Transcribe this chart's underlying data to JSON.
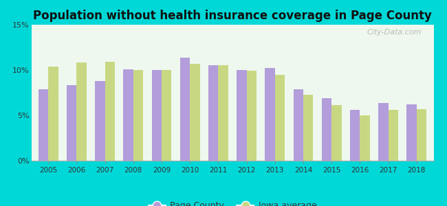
{
  "title": "Population without health insurance coverage in Page County",
  "years": [
    2005,
    2006,
    2007,
    2008,
    2009,
    2010,
    2011,
    2012,
    2013,
    2014,
    2015,
    2016,
    2017,
    2018
  ],
  "page_county": [
    7.9,
    8.3,
    8.8,
    10.1,
    10.0,
    11.4,
    10.5,
    10.0,
    10.2,
    7.9,
    6.9,
    5.6,
    6.4,
    6.2
  ],
  "iowa_avg": [
    10.4,
    10.8,
    10.9,
    10.0,
    10.0,
    10.7,
    10.5,
    9.9,
    9.5,
    7.3,
    6.1,
    5.0,
    5.6,
    5.7
  ],
  "page_county_color": "#b39ddb",
  "iowa_avg_color": "#c8d882",
  "background_outer": "#00d8d8",
  "background_plot_top": "#f0faf0",
  "background_plot_bottom": "#e8f5e8",
  "ylim": [
    0,
    15
  ],
  "yticks": [
    0,
    5,
    10,
    15
  ],
  "ytick_labels": [
    "0%",
    "5%",
    "10%",
    "15%"
  ],
  "watermark": "City-Data.com",
  "legend_page_county": "Page County",
  "legend_iowa": "Iowa average",
  "title_fontsize": 12,
  "bar_width": 0.35
}
